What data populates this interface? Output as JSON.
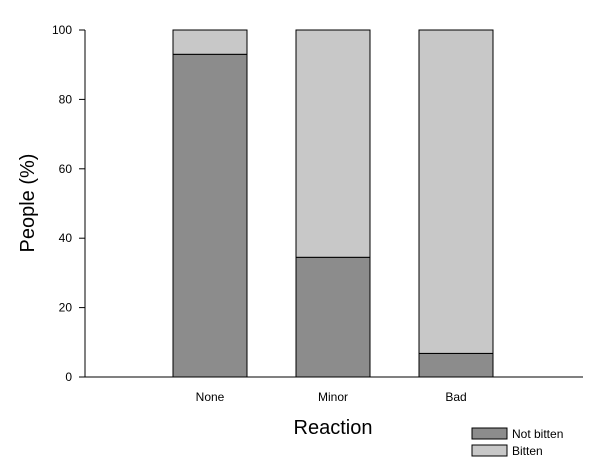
{
  "chart_data": {
    "type": "bar",
    "stacked": true,
    "categories": [
      "None",
      "Minor",
      "Bad"
    ],
    "series": [
      {
        "name": "Not bitten",
        "values": [
          93,
          34.5,
          6.8
        ],
        "color": "#8c8c8c"
      },
      {
        "name": "Bitten",
        "values": [
          7,
          65.5,
          93.2
        ],
        "color": "#c8c8c8"
      }
    ],
    "title": "",
    "xlabel": "Reaction",
    "ylabel": "People (%)",
    "ylim": [
      0,
      100
    ],
    "yticks": [
      "0",
      "20",
      "40",
      "60",
      "80",
      "100"
    ],
    "grid": false,
    "legend_position": "bottom-right"
  }
}
